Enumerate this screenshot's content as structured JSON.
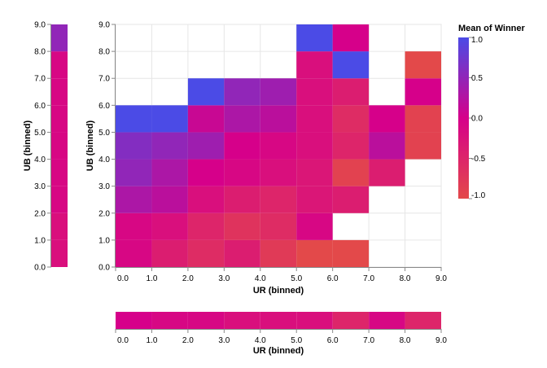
{
  "chart_data": [
    {
      "type": "heatmap",
      "id": "main",
      "xlabel": "UR (binned)",
      "ylabel": "UB (binned)",
      "x_bins": [
        0,
        1,
        2,
        3,
        4,
        5,
        6,
        7,
        8,
        9
      ],
      "y_bins": [
        0,
        1,
        2,
        3,
        4,
        5,
        6,
        7,
        8,
        9
      ],
      "x_ticks": [
        "0.0",
        "1.0",
        "2.0",
        "3.0",
        "4.0",
        "5.0",
        "6.0",
        "7.0",
        "8.0",
        "9.0"
      ],
      "y_ticks": [
        "0.0",
        "1.0",
        "2.0",
        "3.0",
        "4.0",
        "5.0",
        "6.0",
        "7.0",
        "8.0",
        "9.0"
      ],
      "cells": [
        {
          "x": 0,
          "y": 0,
          "value": -0.1
        },
        {
          "x": 1,
          "y": 0,
          "value": -0.4
        },
        {
          "x": 2,
          "y": 0,
          "value": -0.6
        },
        {
          "x": 3,
          "y": 0,
          "value": -0.4
        },
        {
          "x": 4,
          "y": 0,
          "value": -0.8
        },
        {
          "x": 5,
          "y": 0,
          "value": -1.0
        },
        {
          "x": 6,
          "y": 0,
          "value": -1.0
        },
        {
          "x": 0,
          "y": 1,
          "value": -0.1
        },
        {
          "x": 1,
          "y": 1,
          "value": -0.2
        },
        {
          "x": 2,
          "y": 1,
          "value": -0.5
        },
        {
          "x": 3,
          "y": 1,
          "value": -0.7
        },
        {
          "x": 4,
          "y": 1,
          "value": -0.6
        },
        {
          "x": 5,
          "y": 1,
          "value": -0.1
        },
        {
          "x": 0,
          "y": 2,
          "value": 0.3
        },
        {
          "x": 1,
          "y": 2,
          "value": 0.2
        },
        {
          "x": 2,
          "y": 2,
          "value": -0.2
        },
        {
          "x": 3,
          "y": 2,
          "value": -0.4
        },
        {
          "x": 4,
          "y": 2,
          "value": -0.5
        },
        {
          "x": 5,
          "y": 2,
          "value": -0.3
        },
        {
          "x": 6,
          "y": 2,
          "value": -0.4
        },
        {
          "x": 0,
          "y": 3,
          "value": 0.5
        },
        {
          "x": 1,
          "y": 3,
          "value": 0.3
        },
        {
          "x": 2,
          "y": 3,
          "value": 0.0
        },
        {
          "x": 3,
          "y": 3,
          "value": -0.1
        },
        {
          "x": 4,
          "y": 3,
          "value": -0.2
        },
        {
          "x": 5,
          "y": 3,
          "value": -0.3
        },
        {
          "x": 6,
          "y": 3,
          "value": -0.9
        },
        {
          "x": 7,
          "y": 3,
          "value": -0.4
        },
        {
          "x": 0,
          "y": 4,
          "value": 0.6
        },
        {
          "x": 1,
          "y": 4,
          "value": 0.5
        },
        {
          "x": 2,
          "y": 4,
          "value": 0.4
        },
        {
          "x": 3,
          "y": 4,
          "value": 0.0
        },
        {
          "x": 4,
          "y": 4,
          "value": -0.1
        },
        {
          "x": 5,
          "y": 4,
          "value": -0.2
        },
        {
          "x": 6,
          "y": 4,
          "value": -0.5
        },
        {
          "x": 7,
          "y": 4,
          "value": 0.2
        },
        {
          "x": 8,
          "y": 4,
          "value": -0.9
        },
        {
          "x": 0,
          "y": 5,
          "value": 1.0
        },
        {
          "x": 1,
          "y": 5,
          "value": 1.0
        },
        {
          "x": 2,
          "y": 5,
          "value": 0.1
        },
        {
          "x": 3,
          "y": 5,
          "value": 0.3
        },
        {
          "x": 4,
          "y": 5,
          "value": 0.2
        },
        {
          "x": 5,
          "y": 5,
          "value": -0.2
        },
        {
          "x": 6,
          "y": 5,
          "value": -0.6
        },
        {
          "x": 7,
          "y": 5,
          "value": 0.0
        },
        {
          "x": 8,
          "y": 5,
          "value": -0.9
        },
        {
          "x": 2,
          "y": 6,
          "value": 1.0
        },
        {
          "x": 3,
          "y": 6,
          "value": 0.5
        },
        {
          "x": 4,
          "y": 6,
          "value": 0.4
        },
        {
          "x": 5,
          "y": 6,
          "value": -0.2
        },
        {
          "x": 6,
          "y": 6,
          "value": -0.4
        },
        {
          "x": 8,
          "y": 6,
          "value": 0.0
        },
        {
          "x": 5,
          "y": 7,
          "value": -0.2
        },
        {
          "x": 6,
          "y": 7,
          "value": 1.0
        },
        {
          "x": 8,
          "y": 7,
          "value": -1.0
        },
        {
          "x": 5,
          "y": 8,
          "value": 1.0
        },
        {
          "x": 6,
          "y": 8,
          "value": 0.0
        }
      ]
    },
    {
      "type": "heatmap",
      "id": "left-marginal",
      "ylabel": "UB (binned)",
      "y_bins": [
        0,
        1,
        2,
        3,
        4,
        5,
        6,
        7,
        8
      ],
      "y_ticks": [
        "0.0",
        "1.0",
        "2.0",
        "3.0",
        "4.0",
        "5.0",
        "6.0",
        "7.0",
        "8.0",
        "9.0"
      ],
      "values": [
        -0.2,
        -0.2,
        -0.1,
        -0.1,
        -0.1,
        -0.1,
        -0.1,
        -0.1,
        0.5
      ]
    },
    {
      "type": "heatmap",
      "id": "bottom-marginal",
      "xlabel": "UR (binned)",
      "x_bins": [
        0,
        1,
        2,
        3,
        4,
        5,
        6,
        7,
        8
      ],
      "x_ticks": [
        "0.0",
        "1.0",
        "2.0",
        "3.0",
        "4.0",
        "5.0",
        "6.0",
        "7.0",
        "8.0",
        "9.0"
      ],
      "values": [
        0.0,
        -0.1,
        -0.1,
        -0.2,
        -0.2,
        -0.2,
        -0.5,
        -0.1,
        -0.5
      ]
    }
  ],
  "legend": {
    "title": "Mean of Winner",
    "domain": [
      -1.0,
      1.0
    ],
    "ticks": [
      "1.0",
      "0.5",
      "0.0",
      "-0.5",
      "-1.0"
    ],
    "tick_values": [
      1.0,
      0.5,
      0.0,
      -0.5,
      -1.0
    ],
    "colors": {
      "high": "#4b4be6",
      "mid": "#d6008a",
      "low": "#e3494a"
    }
  }
}
